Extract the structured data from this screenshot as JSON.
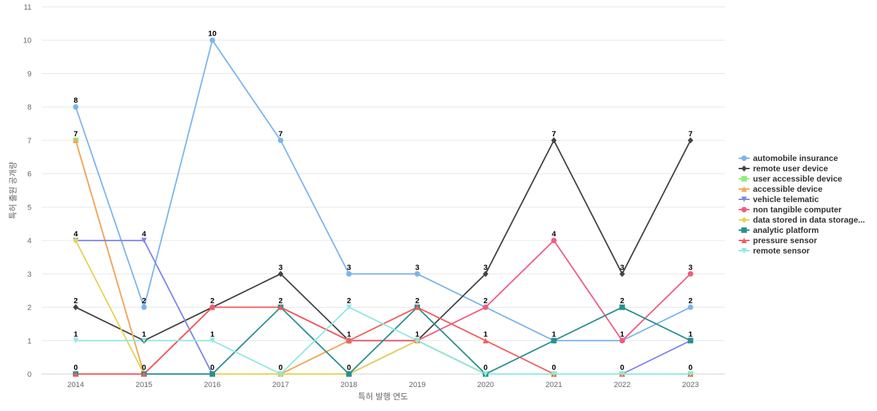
{
  "chart_data": {
    "type": "line",
    "title": "",
    "xlabel": "특허 발행 연도",
    "ylabel": "특허 출원 공개량",
    "x": [
      "2014",
      "2015",
      "2016",
      "2017",
      "2018",
      "2019",
      "2020",
      "2021",
      "2022",
      "2023"
    ],
    "yticks": [
      "0",
      "1",
      "2",
      "3",
      "4",
      "5",
      "6",
      "7",
      "8",
      "9",
      "10",
      "11"
    ],
    "ylim": [
      0,
      11
    ],
    "grid": true,
    "legend_position": "right",
    "series": [
      {
        "name": "automobile insurance",
        "color": "#7cb5ec",
        "marker": "circle",
        "values": [
          8,
          2,
          10,
          7,
          3,
          3,
          2,
          1,
          1,
          2
        ]
      },
      {
        "name": "remote user device",
        "color": "#434348",
        "marker": "diamond",
        "values": [
          2,
          1,
          2,
          3,
          1,
          1,
          3,
          7,
          3,
          7
        ]
      },
      {
        "name": "user accessible device",
        "color": "#90ed7d",
        "marker": "square",
        "values": [
          7,
          0,
          0,
          0,
          1,
          1,
          0,
          0,
          0,
          0
        ]
      },
      {
        "name": "accessible device",
        "color": "#f7a35c",
        "marker": "triangle",
        "values": [
          7,
          0,
          0,
          0,
          1,
          1,
          0,
          0,
          0,
          0
        ]
      },
      {
        "name": "vehicle telematic",
        "color": "#8085e9",
        "marker": "triangle-down",
        "values": [
          4,
          4,
          0,
          0,
          0,
          1,
          0,
          0,
          0,
          1
        ]
      },
      {
        "name": "non tangible computer",
        "color": "#f15c80",
        "marker": "circle",
        "values": [
          0,
          0,
          2,
          2,
          1,
          1,
          2,
          4,
          1,
          3
        ]
      },
      {
        "name": "data stored in data storage...",
        "color": "#e4d354",
        "marker": "diamond",
        "values": [
          4,
          0,
          0,
          0,
          0,
          1,
          0,
          0,
          0,
          0
        ]
      },
      {
        "name": "analytic platform",
        "color": "#2b908f",
        "marker": "square",
        "values": [
          0,
          0,
          0,
          2,
          0,
          2,
          0,
          1,
          2,
          1
        ]
      },
      {
        "name": "pressure sensor",
        "color": "#f45b5b",
        "marker": "triangle",
        "values": [
          0,
          0,
          2,
          2,
          1,
          2,
          1,
          0,
          0,
          0
        ]
      },
      {
        "name": "remote sensor",
        "color": "#91e8e1",
        "marker": "triangle-down",
        "values": [
          1,
          1,
          1,
          0,
          2,
          1,
          0,
          0,
          0,
          0
        ]
      }
    ],
    "data_labels": [
      {
        "x": "2014",
        "values": [
          "8",
          "7",
          "4",
          "2",
          "1",
          "0"
        ]
      },
      {
        "x": "2015",
        "values": [
          "4",
          "2",
          "1",
          "0"
        ]
      },
      {
        "x": "2016",
        "values": [
          "10",
          "2",
          "1",
          "0"
        ]
      },
      {
        "x": "2017",
        "values": [
          "7",
          "3",
          "2",
          "0"
        ]
      },
      {
        "x": "2018",
        "values": [
          "3",
          "2",
          "1",
          "0"
        ]
      },
      {
        "x": "2019",
        "values": [
          "3",
          "2",
          "1"
        ]
      },
      {
        "x": "2020",
        "values": [
          "3",
          "2",
          "1",
          "0"
        ]
      },
      {
        "x": "2021",
        "values": [
          "7",
          "4",
          "1",
          "0"
        ]
      },
      {
        "x": "2022",
        "values": [
          "3",
          "2",
          "1",
          "0"
        ]
      },
      {
        "x": "2023",
        "values": [
          "7",
          "3",
          "2",
          "1",
          "0"
        ]
      }
    ]
  }
}
